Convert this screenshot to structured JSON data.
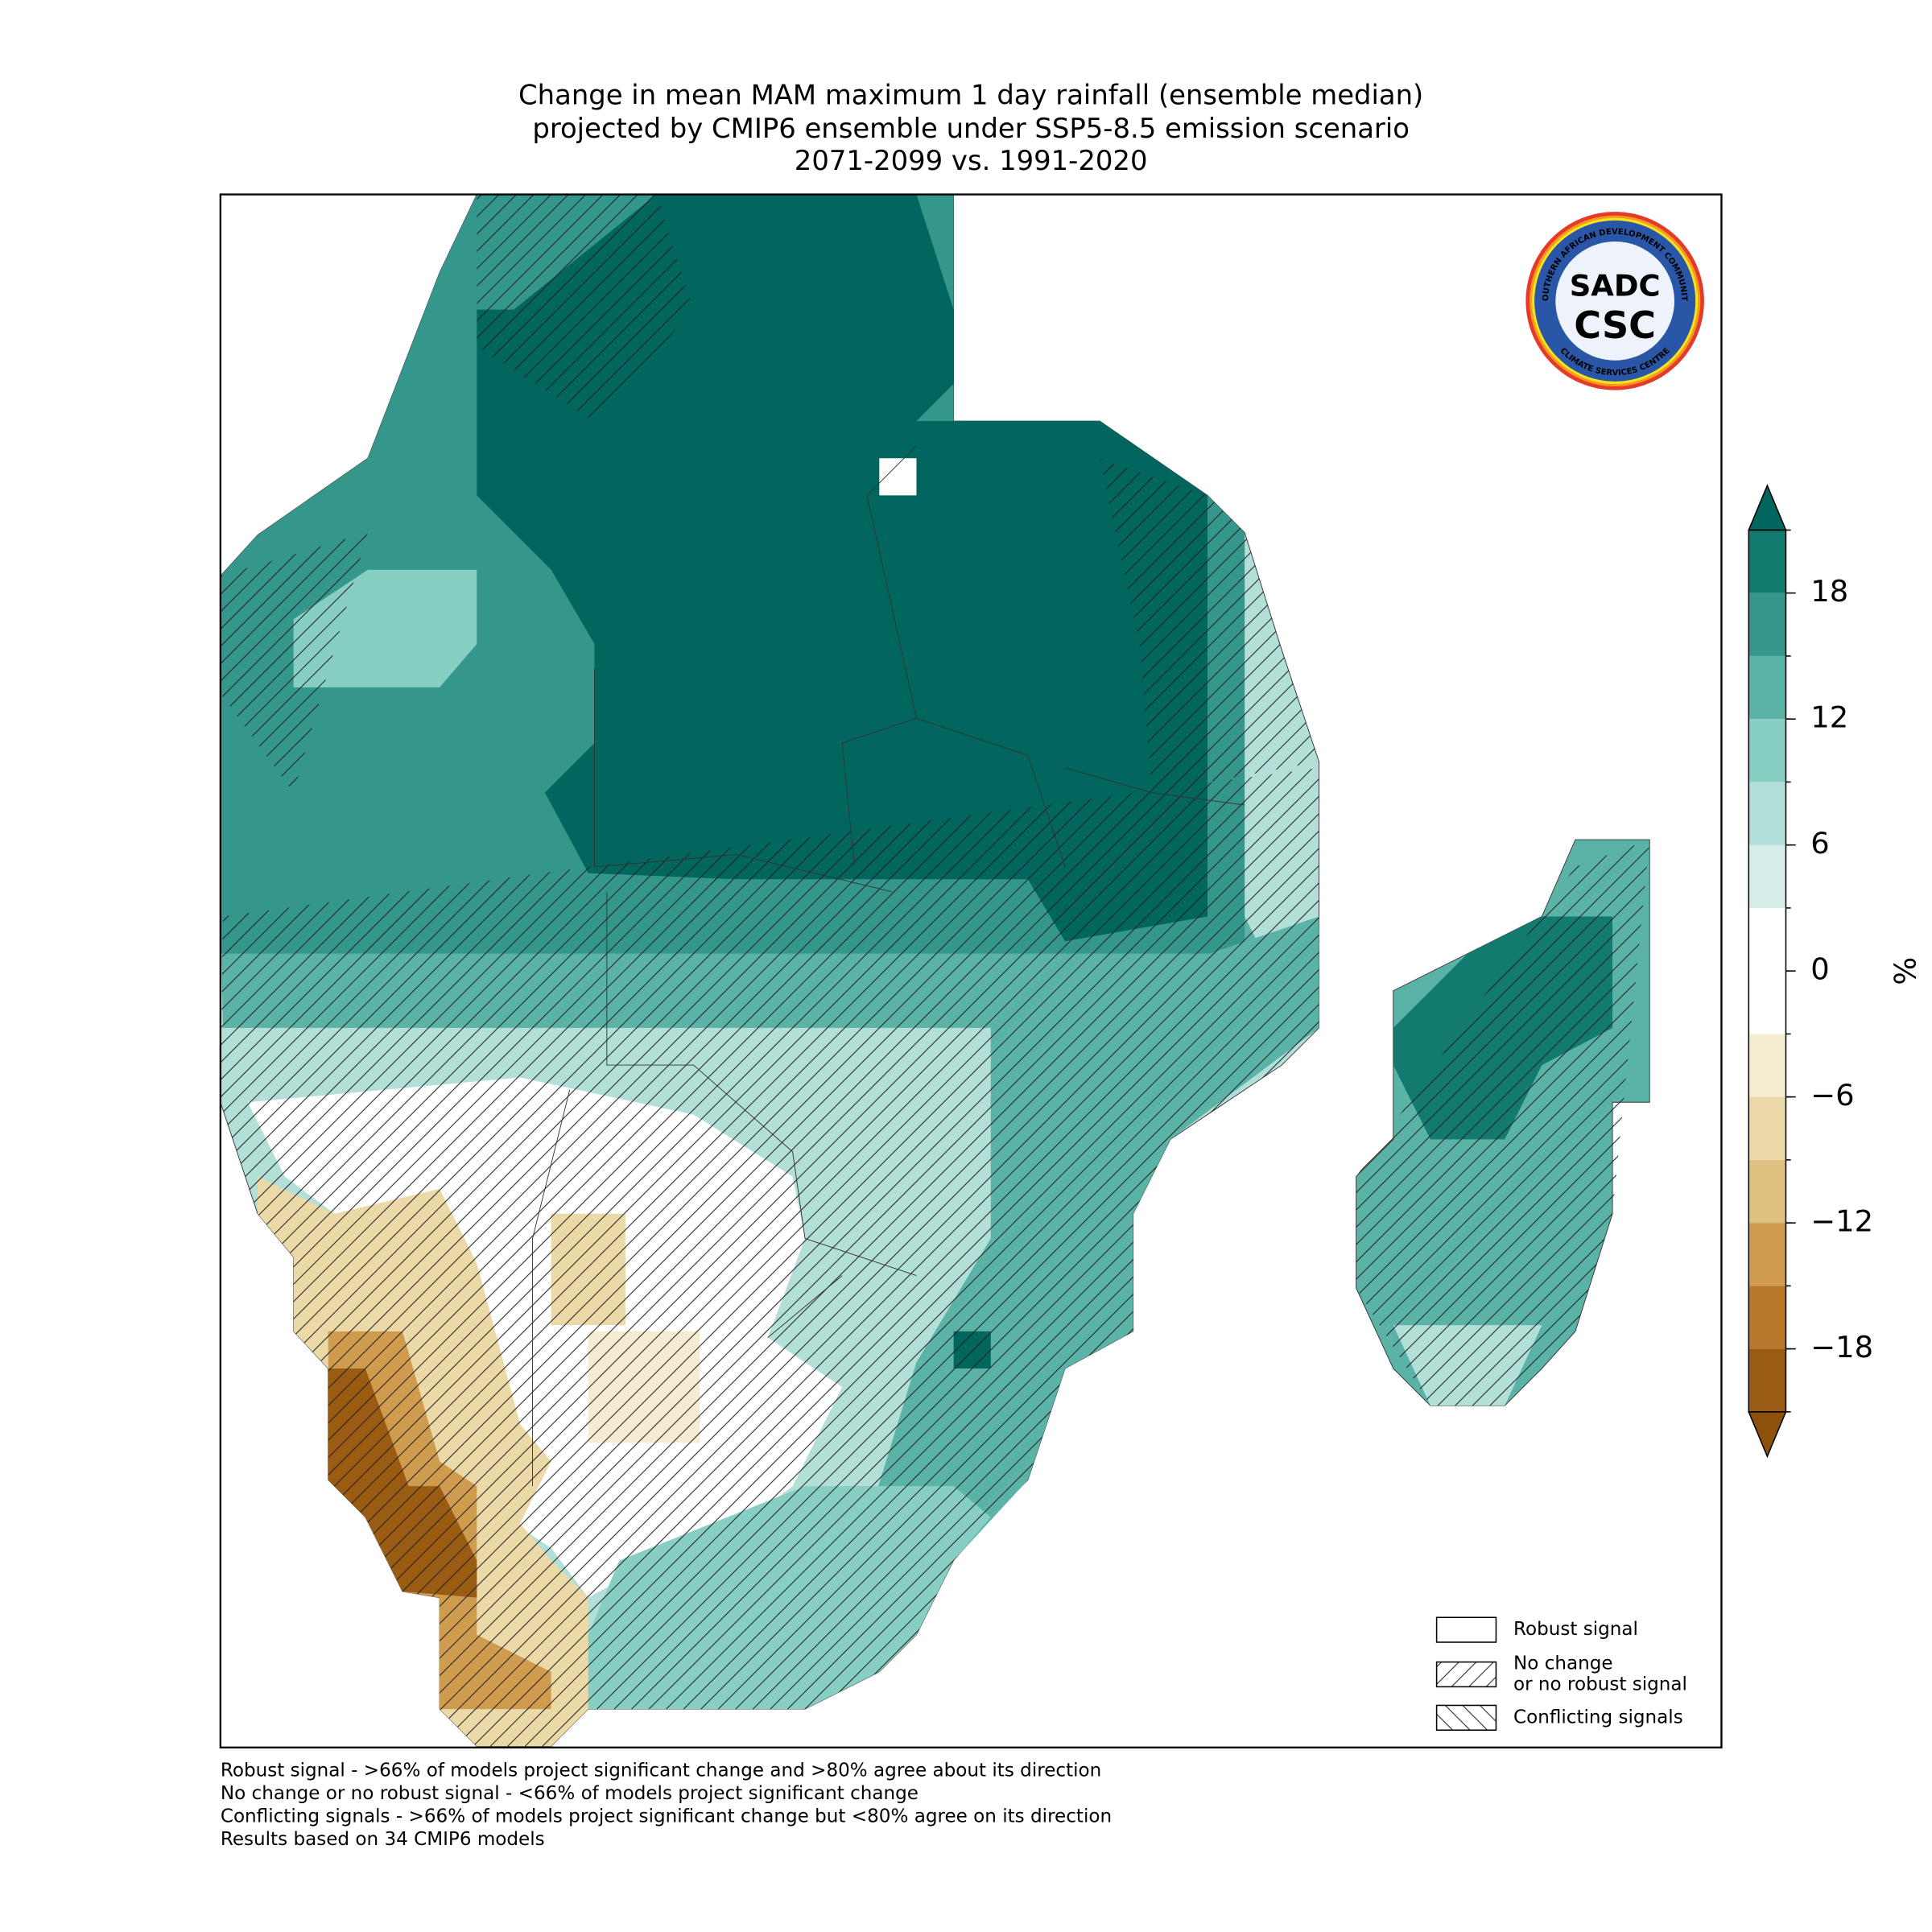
{
  "title": [
    "Change in mean MAM maximum 1 day rainfall (ensemble median)",
    "projected by CMIP6 ensemble under SSP5-8.5 emission scenario",
    "2071-2099 vs. 1991-2020"
  ],
  "colorbar": {
    "label": "%",
    "lim": [
      -21,
      21
    ],
    "ticks": [
      {
        "value": 18,
        "label": "18"
      },
      {
        "value": 12,
        "label": "12"
      },
      {
        "value": 6,
        "label": "6"
      },
      {
        "value": 0,
        "label": "0"
      },
      {
        "value": -6,
        "label": "−6"
      },
      {
        "value": -12,
        "label": "−12"
      },
      {
        "value": -18,
        "label": "−18"
      }
    ],
    "bounds": [
      -21,
      -18,
      -15,
      -12,
      -9,
      -6,
      -3,
      0,
      3,
      6,
      9,
      12,
      15,
      18,
      21
    ],
    "colors": [
      "#9a5b12",
      "#b8782a",
      "#cf9c4f",
      "#dfc07f",
      "#ecd9a8",
      "#f6ecd2",
      "#ffffff",
      "#ffffff",
      "#d5eeea",
      "#b2e0d8",
      "#86cfc2",
      "#5bb3a7",
      "#35968b",
      "#137a70"
    ],
    "extend_colors": [
      "#8c510a",
      "#01665e"
    ]
  },
  "legend": [
    {
      "lines": [
        "Robust signal"
      ],
      "hatch": ""
    },
    {
      "lines": [
        "No change",
        "or no robust signal"
      ],
      "hatch": "/"
    },
    {
      "lines": [
        "Conflicting signals"
      ],
      "hatch": "\\"
    }
  ],
  "footnotes": [
    "Robust signal - >66% of models project significant change and >80% agree about its direction",
    "No change or no robust signal - <66% of models project significant change",
    "Conflicting signals - >66% of models project significant change but <80% agree on its direction",
    "Results based on 34 CMIP6 models"
  ],
  "logo": {
    "top": "SOUTHERN AFRICAN DEVELOPMENT COMMUNITY",
    "bottom": "CLIMATE SERVICES CENTRE",
    "upper_mark": "SADC",
    "lower_mark": "CSC"
  }
}
